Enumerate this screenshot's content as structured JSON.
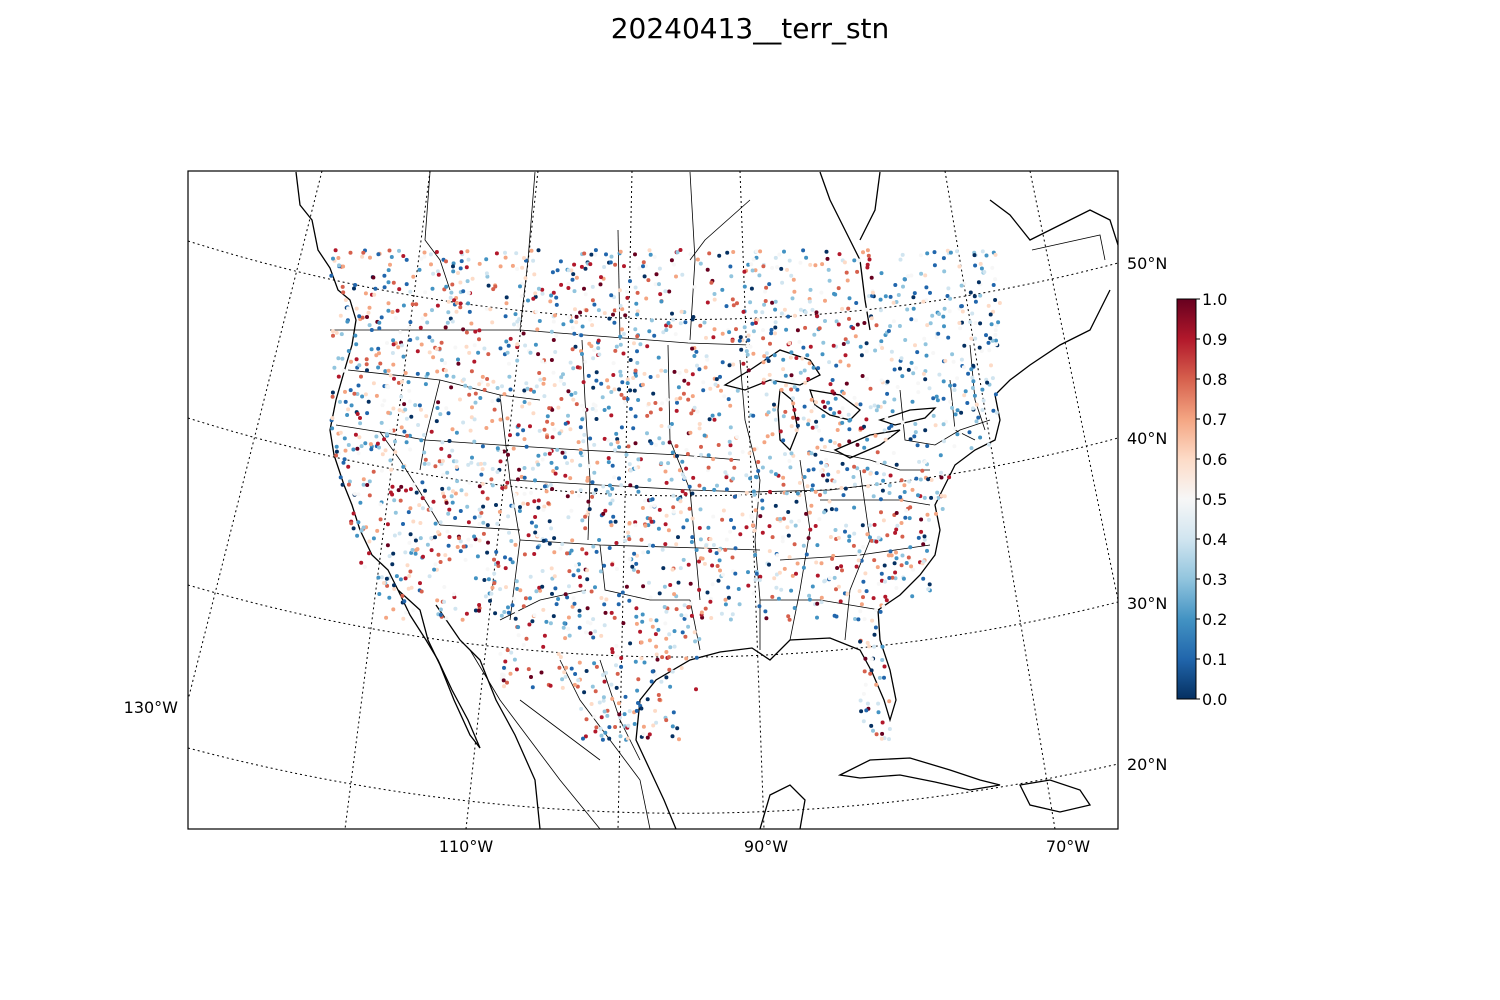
{
  "title": "20240413__terr_stn",
  "map": {
    "lat_labels": [
      "50°N",
      "40°N",
      "30°N",
      "20°N"
    ],
    "lon_labels_bottom": [
      "110°W",
      "90°W",
      "70°W"
    ],
    "lon_label_left": "130°W"
  },
  "colorbar": {
    "ticks": [
      "1.0",
      "0.9",
      "0.8",
      "0.7",
      "0.6",
      "0.5",
      "0.4",
      "0.3",
      "0.2",
      "0.1",
      "0.0"
    ],
    "colormap": "RdBu_r",
    "colors": [
      "#053061",
      "#2166ac",
      "#4393c3",
      "#92c5de",
      "#d1e5f0",
      "#f7f7f7",
      "#fddbc7",
      "#f4a582",
      "#d6604d",
      "#b2182b",
      "#67001f"
    ]
  }
}
